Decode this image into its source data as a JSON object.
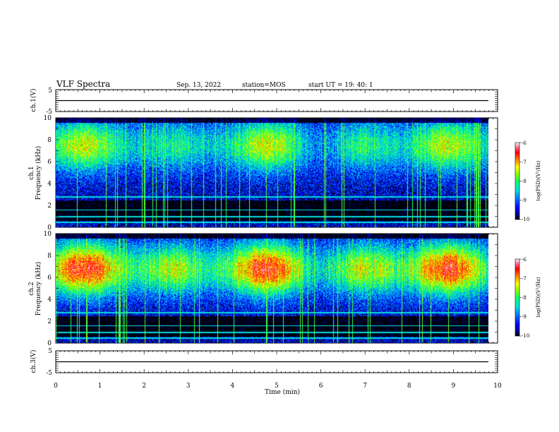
{
  "header": {
    "title": "VLF Spectra",
    "date": "Sep. 13, 2022",
    "station": "station=MOS",
    "start": "start  UT  =   19: 40: 1"
  },
  "chart_data": [
    {
      "type": "line",
      "name": "ch1-waveform",
      "ylabel": "ch.1(V)",
      "ylim": [
        -5,
        5
      ],
      "yticks": [
        "5",
        "-5"
      ],
      "xlim": [
        0,
        10
      ],
      "level": 0,
      "color": "#000000"
    },
    {
      "type": "heatmap",
      "name": "ch1-spectrogram",
      "ylabel_channel": "ch.1",
      "ylabel": "Frequency (kHz)",
      "ylim": [
        0,
        10
      ],
      "yticks": [
        "0",
        "2",
        "4",
        "6",
        "8",
        "10"
      ],
      "xlim": [
        0,
        9.8
      ],
      "colorbar": {
        "label": "log(PSD)(V²/Hz)",
        "range": [
          -10,
          -6
        ],
        "ticks": [
          "-6",
          "-7",
          "-8",
          "-9",
          "-10"
        ]
      },
      "band_center_khz": 7.5
    },
    {
      "type": "heatmap",
      "name": "ch2-spectrogram",
      "ylabel_channel": "ch.2",
      "ylabel": "Frequency (kHz)",
      "ylim": [
        0,
        10
      ],
      "yticks": [
        "0",
        "2",
        "4",
        "6",
        "8",
        "10"
      ],
      "xlim": [
        0,
        9.8
      ],
      "colorbar": {
        "label": "log(PSD)(V²/Hz)",
        "range": [
          -10,
          -6
        ],
        "ticks": [
          "-6",
          "-7",
          "-8",
          "-9",
          "-10"
        ]
      },
      "band_center_khz": 6.8
    },
    {
      "type": "line",
      "name": "ch3-waveform",
      "ylabel": "ch.3(V)",
      "ylim": [
        -5,
        5
      ],
      "yticks": [
        "5",
        "-5"
      ],
      "xlim": [
        0,
        10
      ],
      "level": 0,
      "color": "#000000",
      "xlabel": "Time (min)",
      "xticks": [
        "0",
        "1",
        "2",
        "3",
        "4",
        "5",
        "6",
        "7",
        "8",
        "9",
        "10"
      ]
    }
  ],
  "colormap": [
    "#000000",
    "#00008b",
    "#0000ff",
    "#0080ff",
    "#00e0e0",
    "#00ff80",
    "#80ff00",
    "#ffff00",
    "#ff8000",
    "#ff0000",
    "#ff80a0",
    "#ffffff"
  ]
}
